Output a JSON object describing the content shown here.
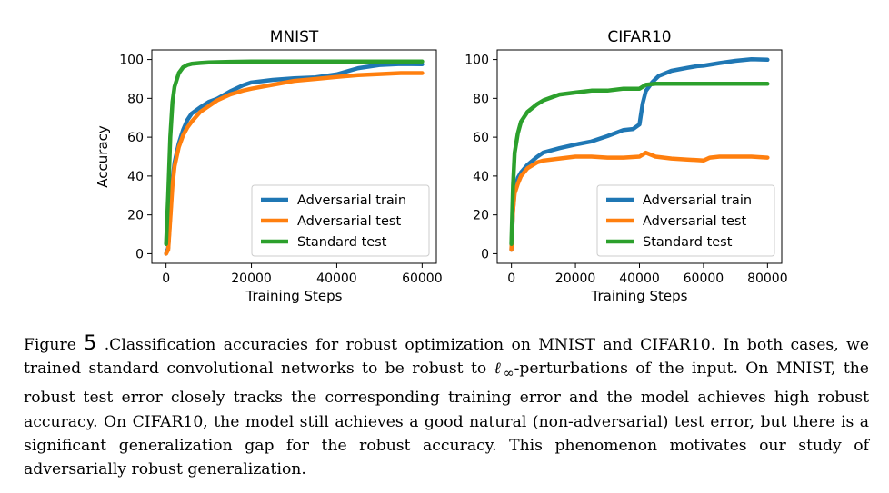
{
  "chart_data": [
    {
      "type": "line",
      "title": "MNIST",
      "xlabel": "Training Steps",
      "ylabel": "Accuracy",
      "xlim": [
        0,
        60000
      ],
      "ylim": [
        0,
        100
      ],
      "xticks": [
        0,
        20000,
        40000,
        60000
      ],
      "yticks": [
        0,
        20,
        40,
        60,
        80,
        100
      ],
      "grid": false,
      "legend_position": "lower-right",
      "series": [
        {
          "name": "Adversarial train",
          "color": "#1f77b4",
          "x": [
            0,
            500,
            1000,
            1500,
            2000,
            3000,
            4000,
            5000,
            6000,
            8000,
            10000,
            12000,
            15000,
            18000,
            20000,
            25000,
            30000,
            35000,
            40000,
            45000,
            50000,
            55000,
            60000
          ],
          "y": [
            0,
            3,
            20,
            38,
            48,
            58,
            64,
            68,
            71,
            75,
            79,
            81,
            84,
            86,
            87,
            89,
            91,
            92,
            93,
            95,
            96,
            97,
            98
          ]
        },
        {
          "name": "Adversarial test",
          "color": "#ff7f0e",
          "x": [
            0,
            500,
            1000,
            1500,
            2000,
            3000,
            4000,
            5000,
            6000,
            8000,
            10000,
            12000,
            15000,
            18000,
            20000,
            25000,
            30000,
            35000,
            40000,
            45000,
            50000,
            55000,
            60000
          ],
          "y": [
            0,
            2,
            18,
            35,
            45,
            55,
            61,
            65,
            68,
            73,
            76,
            79,
            82,
            84,
            85,
            87,
            89,
            90,
            91,
            92,
            92.5,
            93,
            93
          ]
        },
        {
          "name": "Standard test",
          "color": "#2ca02c",
          "x": [
            0,
            500,
            1000,
            1500,
            2000,
            3000,
            4000,
            5000,
            6000,
            8000,
            10000,
            15000,
            20000,
            30000,
            40000,
            50000,
            60000
          ],
          "y": [
            5,
            30,
            60,
            78,
            86,
            93,
            96,
            97.2,
            97.8,
            98.2,
            98.5,
            98.8,
            99,
            99,
            99,
            99,
            99
          ]
        }
      ]
    },
    {
      "type": "line",
      "title": "CIFAR10",
      "xlabel": "Training Steps",
      "ylabel": "",
      "xlim": [
        0,
        80000
      ],
      "ylim": [
        0,
        100
      ],
      "xticks": [
        0,
        20000,
        40000,
        60000,
        80000
      ],
      "yticks": [
        0,
        20,
        40,
        60,
        80,
        100
      ],
      "grid": false,
      "legend_position": "lower-right",
      "series": [
        {
          "name": "Adversarial train",
          "color": "#1f77b4",
          "x": [
            0,
            500,
            1000,
            2000,
            3000,
            5000,
            8000,
            10000,
            15000,
            20000,
            25000,
            30000,
            35000,
            38000,
            40000,
            41000,
            42000,
            44000,
            46000,
            50000,
            55000,
            58000,
            60000,
            65000,
            70000,
            75000,
            80000
          ],
          "y": [
            2,
            22,
            33,
            40,
            43,
            46,
            49,
            51,
            54,
            57,
            59,
            61,
            63,
            63,
            66,
            78,
            85,
            89,
            91,
            93,
            95,
            97,
            98,
            99,
            99,
            99,
            99
          ]
        },
        {
          "name": "Adversarial test",
          "color": "#ff7f0e",
          "x": [
            0,
            500,
            1000,
            2000,
            3000,
            5000,
            8000,
            10000,
            15000,
            20000,
            25000,
            30000,
            35000,
            40000,
            42000,
            45000,
            50000,
            55000,
            60000,
            62000,
            65000,
            70000,
            75000,
            80000
          ],
          "y": [
            2,
            22,
            31,
            36,
            40,
            44,
            47,
            48,
            49,
            50,
            50,
            49.5,
            49.5,
            50,
            52,
            50,
            49,
            48.5,
            48,
            49.5,
            50,
            50,
            50,
            49.5
          ]
        },
        {
          "name": "Standard test",
          "color": "#2ca02c",
          "x": [
            0,
            500,
            1000,
            2000,
            3000,
            5000,
            8000,
            10000,
            15000,
            20000,
            25000,
            30000,
            35000,
            40000,
            42000,
            45000,
            50000,
            60000,
            70000,
            80000
          ],
          "y": [
            5,
            35,
            52,
            62,
            68,
            73,
            77,
            79,
            82,
            83,
            84,
            84,
            85,
            85,
            87,
            87.5,
            87.5,
            87.5,
            87.5,
            87.5
          ]
        }
      ]
    }
  ],
  "caption": {
    "label": "Figure",
    "number": "5",
    "text_before": ".Classification accuracies for robust optimization on MNIST and CIFAR10. In both cases, we trained standard convolutional networks to be robust to ",
    "math": "ℓ",
    "math_sub": "∞",
    "text_after": "-perturbations of the input.  On MNIST, the robust test error closely tracks the corresponding training error and the model achieves high robust accuracy.  On CIFAR10, the model still achieves a good natural (non-adversarial) test error, but there is a significant generalization gap for the robust accuracy. This phenomenon motivates our study of adversarially robust generalization."
  }
}
